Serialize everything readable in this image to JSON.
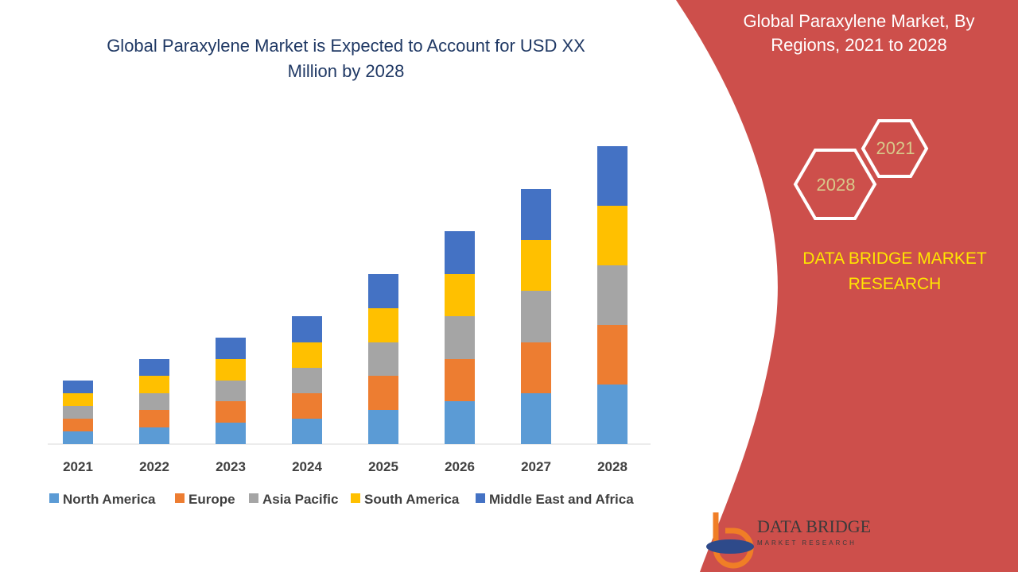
{
  "chart_data": {
    "type": "stacked-bar",
    "title": "Global Paraxylene Market is Expected to Account for USD XX Million by 2028",
    "categories": [
      "2021",
      "2022",
      "2023",
      "2024",
      "2025",
      "2026",
      "2027",
      "2028"
    ],
    "series": [
      {
        "name": "North America",
        "color": "#5b9bd5",
        "values": [
          16,
          21,
          27,
          32,
          43,
          54,
          64,
          75
        ]
      },
      {
        "name": "Europe",
        "color": "#ed7d31",
        "values": [
          16,
          22,
          27,
          32,
          43,
          53,
          64,
          75
        ]
      },
      {
        "name": "Asia Pacific",
        "color": "#a5a5a5",
        "values": [
          16,
          21,
          26,
          32,
          42,
          54,
          65,
          75
        ]
      },
      {
        "name": "South America",
        "color": "#ffc000",
        "values": [
          16,
          22,
          27,
          32,
          43,
          53,
          64,
          75
        ]
      },
      {
        "name": "Middle East and Africa",
        "color": "#4472c4",
        "values": [
          16,
          21,
          27,
          33,
          43,
          54,
          64,
          75
        ]
      }
    ],
    "ylim": [
      0,
      400
    ]
  },
  "side_panel": {
    "heading": "Global Paraxylene Market, By Regions, 2021 to 2028",
    "hexagons": [
      "2021",
      "2028"
    ],
    "brand": "DATA BRIDGE MARKET RESEARCH"
  },
  "logo": {
    "name": "DATA BRIDGE",
    "tagline": "MARKET RESEARCH"
  }
}
